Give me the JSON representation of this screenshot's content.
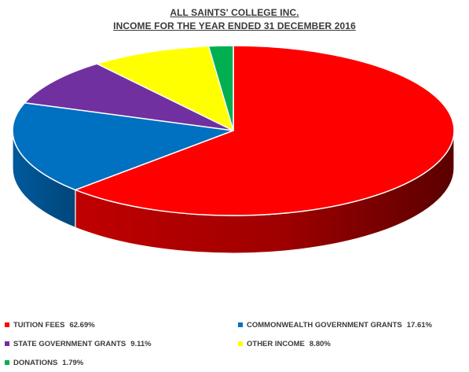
{
  "chart_data": {
    "type": "pie",
    "title": "ALL SAINTS' COLLEGE INC.",
    "subtitle": "INCOME FOR THE YEAR ENDED 31 DECEMBER 2016",
    "legend_position": "bottom",
    "slices": [
      {
        "label": "TUITION FEES",
        "value": 62.69,
        "value_label": "62.69%",
        "color": "#ff0000",
        "side_color": "#8b0000"
      },
      {
        "label": "COMMONWEALTH GOVERNMENT GRANTS",
        "value": 17.61,
        "value_label": "17.61%",
        "color": "#0070c0",
        "side_color": "#004a80"
      },
      {
        "label": "STATE GOVERNMENT GRANTS",
        "value": 9.11,
        "value_label": "9.11%",
        "color": "#7030a0",
        "side_color": "#4a1f6b"
      },
      {
        "label": "OTHER INCOME",
        "value": 8.8,
        "value_label": "8.80%",
        "color": "#ffff00",
        "side_color": "#a8a800"
      },
      {
        "label": "DONATIONS",
        "value": 1.79,
        "value_label": "1.79%",
        "color": "#00b050",
        "side_color": "#007a38"
      }
    ]
  }
}
